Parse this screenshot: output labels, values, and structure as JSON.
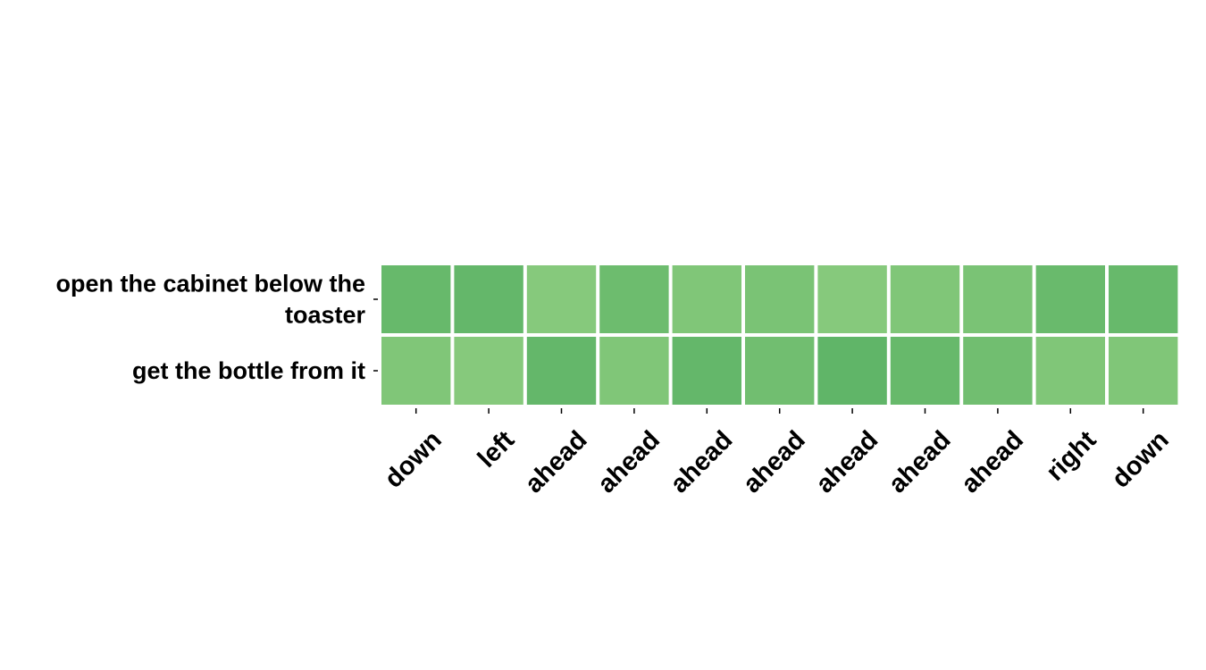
{
  "chart_data": {
    "type": "heatmap",
    "title": "",
    "xlabel": "",
    "ylabel": "",
    "x_categories": [
      "down",
      "left",
      "ahead",
      "ahead",
      "ahead",
      "ahead",
      "ahead",
      "ahead",
      "ahead",
      "right",
      "down"
    ],
    "y_categories": [
      [
        "open the cabinet below the",
        "toaster"
      ],
      [
        "get the bottle from it"
      ]
    ],
    "values": [
      [
        0.72,
        0.76,
        0.38,
        0.66,
        0.45,
        0.52,
        0.38,
        0.45,
        0.52,
        0.7,
        0.72
      ],
      [
        0.45,
        0.38,
        0.76,
        0.45,
        0.76,
        0.62,
        0.8,
        0.72,
        0.62,
        0.45,
        0.45
      ]
    ],
    "colormap": [
      "#a9dc8e",
      "#4eab5e"
    ],
    "grid": false,
    "legend": "none"
  }
}
